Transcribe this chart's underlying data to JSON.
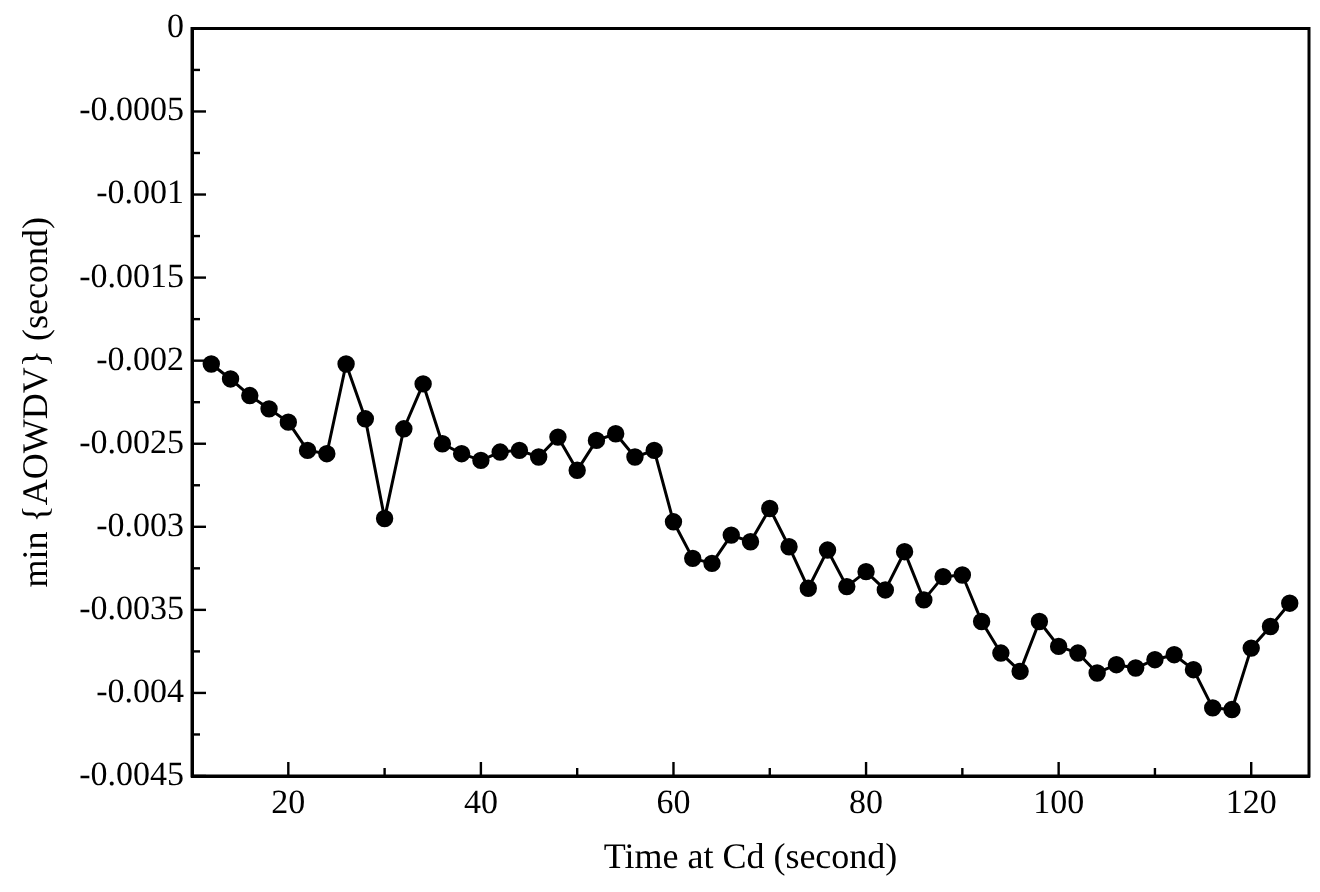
{
  "chart_data": {
    "type": "line",
    "xlabel": "Time at Cd (second)",
    "ylabel": "min {AOWDV} (second)",
    "x": [
      12,
      14,
      16,
      18,
      20,
      22,
      24,
      26,
      28,
      30,
      32,
      34,
      36,
      38,
      40,
      42,
      44,
      46,
      48,
      50,
      52,
      54,
      56,
      58,
      60,
      62,
      64,
      66,
      68,
      70,
      72,
      74,
      76,
      78,
      80,
      82,
      84,
      86,
      88,
      90,
      92,
      94,
      96,
      98,
      100,
      102,
      104,
      106,
      108,
      110,
      112,
      114,
      116,
      118,
      120,
      122,
      124
    ],
    "series": [
      {
        "color": "#000000",
        "values": [
          -0.00202,
          -0.00211,
          -0.00221,
          -0.00229,
          -0.00237,
          -0.00254,
          -0.00256,
          -0.00202,
          -0.00235,
          -0.00295,
          -0.00241,
          -0.00214,
          -0.0025,
          -0.00256,
          -0.0026,
          -0.00255,
          -0.00254,
          -0.00258,
          -0.00246,
          -0.00266,
          -0.00248,
          -0.00244,
          -0.00258,
          -0.00254,
          -0.00297,
          -0.00319,
          -0.00322,
          -0.00305,
          -0.00309,
          -0.00289,
          -0.00312,
          -0.00337,
          -0.00314,
          -0.00336,
          -0.00327,
          -0.00338,
          -0.00315,
          -0.00344,
          -0.0033,
          -0.00329,
          -0.00357,
          -0.00376,
          -0.00387,
          -0.00357,
          -0.00372,
          -0.00376,
          -0.00388,
          -0.00383,
          -0.00385,
          -0.0038,
          -0.00377,
          -0.00386,
          -0.00409,
          -0.0041,
          -0.00373,
          -0.0036,
          -0.00346
        ]
      }
    ],
    "xlim": [
      10,
      126
    ],
    "ylim": [
      -0.0045,
      0
    ],
    "xticks": [
      20,
      {
        "value": 30,
        "label": null
      },
      40,
      {
        "value": 50,
        "label": null
      },
      60,
      {
        "value": 70,
        "label": null
      },
      80,
      {
        "value": 90,
        "label": null
      },
      100,
      {
        "value": 110,
        "label": null
      },
      120
    ],
    "yticks": [
      -0.0045,
      {
        "value": -0.00425,
        "label": null
      },
      -0.004,
      {
        "value": -0.00375,
        "label": null
      },
      -0.0035,
      {
        "value": -0.00325,
        "label": null
      },
      -0.003,
      {
        "value": -0.00275,
        "label": null
      },
      -0.0025,
      {
        "value": -0.00225,
        "label": null
      },
      -0.002,
      {
        "value": -0.00175,
        "label": null
      },
      -0.0015,
      {
        "value": -0.00125,
        "label": null
      },
      -0.001,
      {
        "value": -0.00075,
        "label": null
      },
      -0.0005,
      {
        "value": -0.00025,
        "label": null
      },
      0
    ],
    "marker": "circle",
    "line_style": "solid",
    "grid": false,
    "legend": false
  }
}
